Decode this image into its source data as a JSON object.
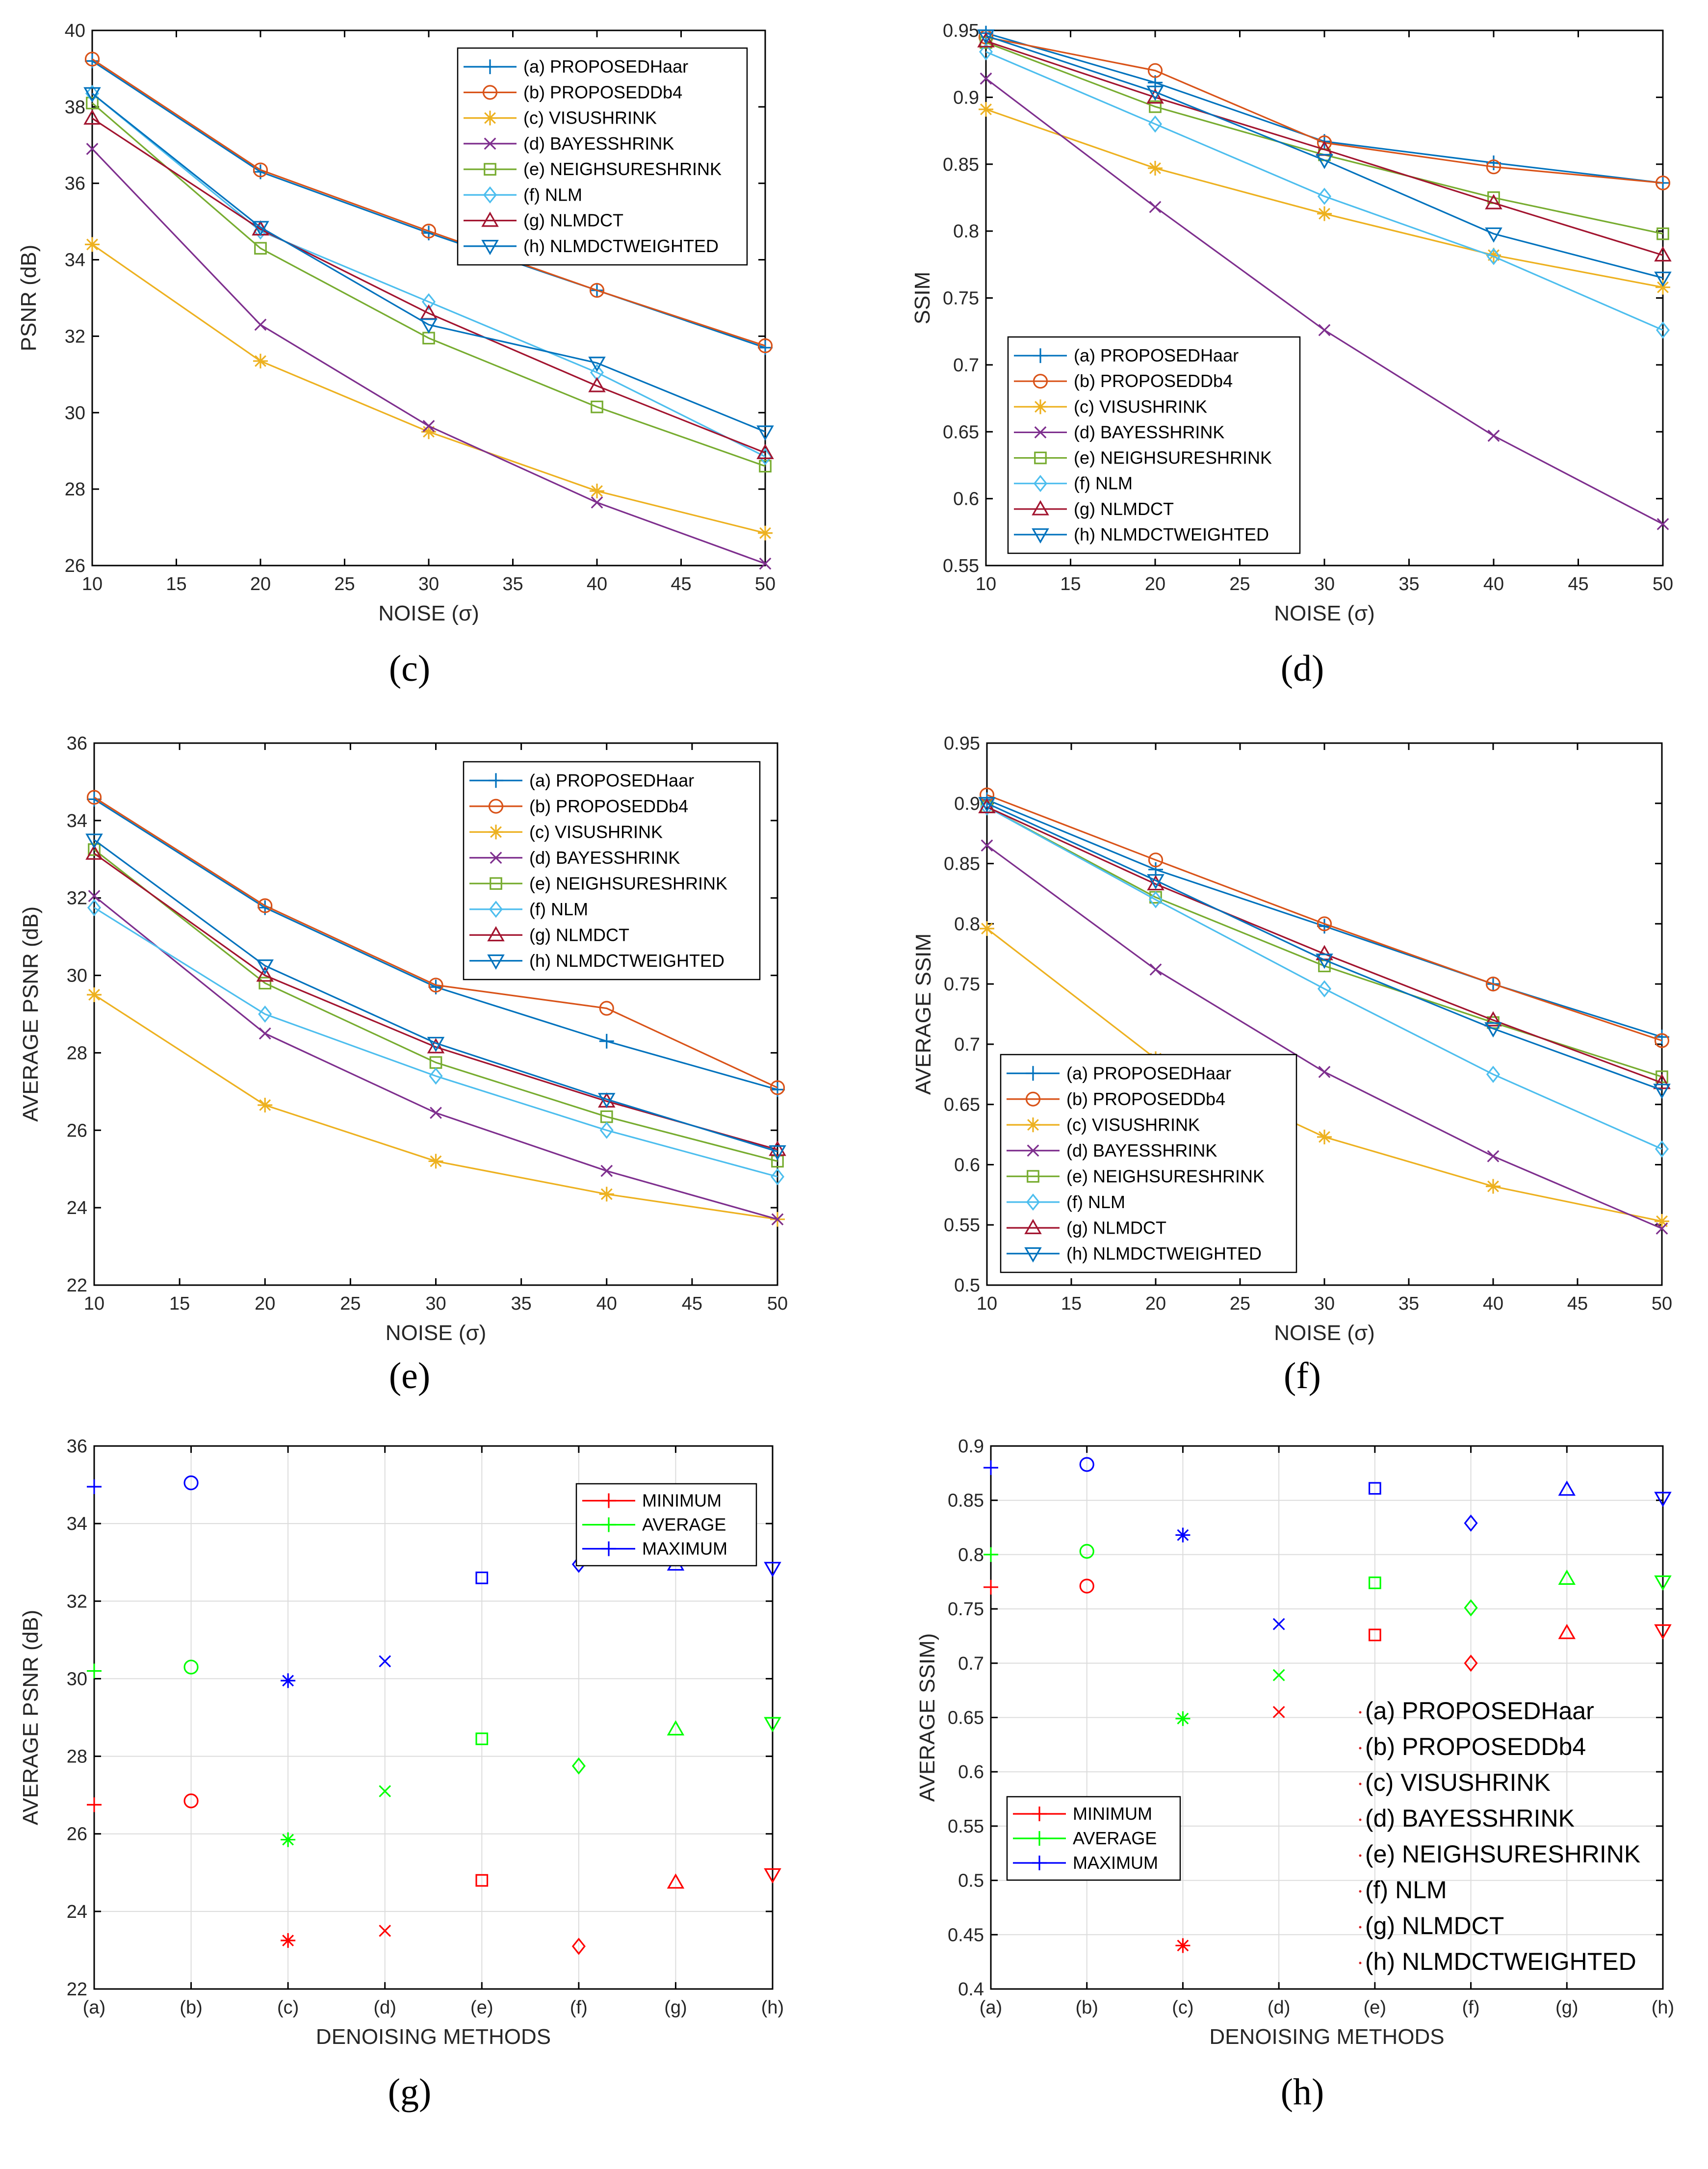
{
  "colors": {
    "a": "#0072BD",
    "b": "#D95319",
    "c": "#EDB120",
    "d": "#7E2F8E",
    "e": "#77AC30",
    "f": "#4DBEEE",
    "g": "#A2142F",
    "h": "#0072BD",
    "minimum": "#FF0000",
    "average": "#00FF00",
    "maximum": "#0000FF"
  },
  "methods": [
    "PROPOSEDHaar",
    "PROPOSEDDb4",
    "VISUSHRINK",
    "BAYESSHRINK",
    "NEIGHSURESHRINK",
    "NLM",
    "NLMDCT",
    "NLMDCTWEIGHTED"
  ],
  "method_legend_labels": [
    "(a) PROPOSEDHaar",
    "(b) PROPOSEDDb4",
    "(c) VISUSHRINK",
    "(d) BAYESSHRINK",
    "(e) NEIGHSURESHRINK",
    "(f) NLM",
    "(g) NLMDCT",
    "(h) NLMDCTWEIGHTED"
  ],
  "summary_legend_labels": [
    "MINIMUM",
    "AVERAGE",
    "MAXIMUM"
  ],
  "chart_data": [
    {
      "id": "c",
      "panel_label": "(c)",
      "type": "line",
      "xlabel": "NOISE (σ)",
      "ylabel": "PSNR (dB)",
      "x": [
        10,
        20,
        30,
        40,
        50
      ],
      "xticks": [
        "10",
        "15",
        "20",
        "25",
        "30",
        "35",
        "40",
        "45",
        "50"
      ],
      "xlim": [
        10,
        50
      ],
      "ylim": [
        26,
        40
      ],
      "yticks": [
        "26",
        "28",
        "30",
        "32",
        "34",
        "36",
        "38",
        "40"
      ],
      "legend": "top-right",
      "series": [
        {
          "key": "a",
          "name": "(a) PROPOSEDHaar",
          "marker": "plus",
          "values": [
            39.2,
            36.3,
            34.7,
            33.2,
            31.7
          ]
        },
        {
          "key": "b",
          "name": "(b) PROPOSEDDb4",
          "marker": "circle",
          "values": [
            39.25,
            36.35,
            34.75,
            33.2,
            31.75
          ]
        },
        {
          "key": "c",
          "name": "(c) VISUSHRINK",
          "marker": "asterisk",
          "values": [
            34.4,
            31.35,
            29.5,
            27.95,
            26.85
          ]
        },
        {
          "key": "d",
          "name": "(d) BAYESSHRINK",
          "marker": "x",
          "values": [
            36.9,
            32.3,
            29.65,
            27.65,
            26.05
          ]
        },
        {
          "key": "e",
          "name": "(e) NEIGHSURESHRINK",
          "marker": "square",
          "values": [
            38.1,
            34.3,
            31.95,
            30.15,
            28.6
          ]
        },
        {
          "key": "f",
          "name": "(f) NLM",
          "marker": "diamond",
          "values": [
            38.35,
            34.75,
            32.9,
            31.05,
            28.85
          ]
        },
        {
          "key": "g",
          "name": "(g) NLMDCT",
          "marker": "triangle-up",
          "values": [
            37.7,
            34.8,
            32.6,
            30.7,
            28.95
          ]
        },
        {
          "key": "h",
          "name": "(h) NLMDCTWEIGHTED",
          "marker": "triangle-down",
          "values": [
            38.35,
            34.85,
            32.3,
            31.3,
            29.5
          ]
        }
      ]
    },
    {
      "id": "d",
      "panel_label": "(d)",
      "type": "line",
      "xlabel": "NOISE (σ)",
      "ylabel": "SSIM",
      "x": [
        10,
        20,
        30,
        40,
        50
      ],
      "xticks": [
        "10",
        "15",
        "20",
        "25",
        "30",
        "35",
        "40",
        "45",
        "50"
      ],
      "xlim": [
        10,
        50
      ],
      "ylim": [
        0.55,
        0.95
      ],
      "yticks": [
        "0.55",
        "0.6",
        "0.65",
        "0.7",
        "0.75",
        "0.8",
        "0.85",
        "0.9",
        "0.95"
      ],
      "legend": "bottom-left",
      "series": [
        {
          "key": "a",
          "name": "(a) PROPOSEDHaar",
          "marker": "plus",
          "values": [
            0.948,
            0.911,
            0.867,
            0.851,
            0.836
          ]
        },
        {
          "key": "b",
          "name": "(b) PROPOSEDDb4",
          "marker": "circle",
          "values": [
            0.945,
            0.92,
            0.866,
            0.848,
            0.836
          ]
        },
        {
          "key": "c",
          "name": "(c) VISUSHRINK",
          "marker": "asterisk",
          "values": [
            0.891,
            0.847,
            0.813,
            0.782,
            0.758
          ]
        },
        {
          "key": "d",
          "name": "(d) BAYESSHRINK",
          "marker": "x",
          "values": [
            0.914,
            0.818,
            0.726,
            0.647,
            0.581
          ]
        },
        {
          "key": "e",
          "name": "(e) NEIGHSURESHRINK",
          "marker": "square",
          "values": [
            0.941,
            0.893,
            0.857,
            0.825,
            0.798
          ]
        },
        {
          "key": "f",
          "name": "(f) NLM",
          "marker": "diamond",
          "values": [
            0.934,
            0.88,
            0.826,
            0.781,
            0.726
          ]
        },
        {
          "key": "g",
          "name": "(g) NLMDCT",
          "marker": "triangle-up",
          "values": [
            0.942,
            0.9,
            0.861,
            0.821,
            0.782
          ]
        },
        {
          "key": "h",
          "name": "(h) NLMDCTWEIGHTED",
          "marker": "triangle-down",
          "values": [
            0.946,
            0.904,
            0.853,
            0.798,
            0.765
          ]
        }
      ]
    },
    {
      "id": "e",
      "panel_label": "(e)",
      "type": "line",
      "xlabel": "NOISE (σ)",
      "ylabel": "AVERAGE PSNR (dB)",
      "x": [
        10,
        20,
        30,
        40,
        50
      ],
      "xticks": [
        "10",
        "15",
        "20",
        "25",
        "30",
        "35",
        "40",
        "45",
        "50"
      ],
      "xlim": [
        10,
        50
      ],
      "ylim": [
        22,
        36
      ],
      "yticks": [
        "22",
        "24",
        "26",
        "28",
        "30",
        "32",
        "34",
        "36"
      ],
      "legend": "top-right",
      "series": [
        {
          "key": "a",
          "name": "(a) PROPOSEDHaar",
          "marker": "plus",
          "values": [
            34.55,
            31.75,
            29.7,
            28.3,
            27.05
          ]
        },
        {
          "key": "b",
          "name": "(b) PROPOSEDDb4",
          "marker": "circle",
          "values": [
            34.6,
            31.8,
            29.75,
            29.15,
            27.1
          ]
        },
        {
          "key": "c",
          "name": "(c) VISUSHRINK",
          "marker": "asterisk",
          "values": [
            29.5,
            26.65,
            25.2,
            24.35,
            23.7
          ]
        },
        {
          "key": "d",
          "name": "(d) BAYESSHRINK",
          "marker": "x",
          "values": [
            32.05,
            28.5,
            26.45,
            24.95,
            23.7
          ]
        },
        {
          "key": "e",
          "name": "(e) NEIGHSURESHRINK",
          "marker": "square",
          "values": [
            33.25,
            29.8,
            27.75,
            26.35,
            25.2
          ]
        },
        {
          "key": "f",
          "name": "(f) NLM",
          "marker": "diamond",
          "values": [
            31.75,
            29.0,
            27.4,
            26.0,
            24.8
          ]
        },
        {
          "key": "g",
          "name": "(g) NLMDCT",
          "marker": "triangle-up",
          "values": [
            33.15,
            30.0,
            28.15,
            26.75,
            25.5
          ]
        },
        {
          "key": "h",
          "name": "(h) NLMDCTWEIGHTED",
          "marker": "triangle-down",
          "values": [
            33.5,
            30.25,
            28.25,
            26.8,
            25.45
          ]
        }
      ]
    },
    {
      "id": "f",
      "panel_label": "(f)",
      "type": "line",
      "xlabel": "NOISE (σ)",
      "ylabel": "AVERAGE SSIM",
      "x": [
        10,
        20,
        30,
        40,
        50
      ],
      "xticks": [
        "10",
        "15",
        "20",
        "25",
        "30",
        "35",
        "40",
        "45",
        "50"
      ],
      "xlim": [
        10,
        50
      ],
      "ylim": [
        0.5,
        0.95
      ],
      "yticks": [
        "0.5",
        "0.55",
        "0.6",
        "0.65",
        "0.7",
        "0.75",
        "0.8",
        "0.85",
        "0.9",
        "0.95"
      ],
      "legend": "bottom-left",
      "series": [
        {
          "key": "a",
          "name": "(a) PROPOSEDHaar",
          "marker": "plus",
          "values": [
            0.903,
            0.845,
            0.798,
            0.75,
            0.706
          ]
        },
        {
          "key": "b",
          "name": "(b) PROPOSEDDb4",
          "marker": "circle",
          "values": [
            0.907,
            0.853,
            0.8,
            0.75,
            0.703
          ]
        },
        {
          "key": "c",
          "name": "(c) VISUSHRINK",
          "marker": "asterisk",
          "values": [
            0.796,
            0.688,
            0.623,
            0.582,
            0.553
          ]
        },
        {
          "key": "d",
          "name": "(d) BAYESSHRINK",
          "marker": "x",
          "values": [
            0.865,
            0.762,
            0.677,
            0.607,
            0.547
          ]
        },
        {
          "key": "e",
          "name": "(e) NEIGHSURESHRINK",
          "marker": "square",
          "values": [
            0.897,
            0.822,
            0.765,
            0.718,
            0.673
          ]
        },
        {
          "key": "f",
          "name": "(f) NLM",
          "marker": "diamond",
          "values": [
            0.897,
            0.82,
            0.746,
            0.675,
            0.613
          ]
        },
        {
          "key": "g",
          "name": "(g) NLMDCT",
          "marker": "triangle-up",
          "values": [
            0.897,
            0.833,
            0.775,
            0.72,
            0.668
          ]
        },
        {
          "key": "h",
          "name": "(h) NLMDCTWEIGHTED",
          "marker": "triangle-down",
          "values": [
            0.9,
            0.836,
            0.77,
            0.713,
            0.662
          ]
        }
      ]
    },
    {
      "id": "g",
      "panel_label": "(g)",
      "type": "scatter",
      "xlabel": "DENOISING METHODS",
      "ylabel": "AVERAGE PSNR (dB)",
      "categories": [
        "(a)",
        "(b)",
        "(c)",
        "(d)",
        "(e)",
        "(f)",
        "(g)",
        "(h)"
      ],
      "markers": [
        "plus",
        "circle",
        "asterisk",
        "x",
        "square",
        "diamond",
        "triangle-up",
        "triangle-down"
      ],
      "ylim": [
        22,
        36
      ],
      "yticks": [
        "22",
        "24",
        "26",
        "28",
        "30",
        "32",
        "34",
        "36"
      ],
      "legend": "top-right",
      "series": [
        {
          "key": "minimum",
          "name": "MINIMUM",
          "values": [
            26.75,
            26.85,
            23.25,
            23.5,
            24.8,
            23.1,
            24.75,
            24.95
          ]
        },
        {
          "key": "average",
          "name": "AVERAGE",
          "values": [
            30.2,
            30.3,
            25.85,
            27.1,
            28.45,
            27.75,
            28.7,
            28.85
          ]
        },
        {
          "key": "maximum",
          "name": "MAXIMUM",
          "values": [
            34.95,
            35.05,
            29.95,
            30.45,
            32.6,
            32.95,
            32.95,
            32.85
          ]
        }
      ]
    },
    {
      "id": "h",
      "panel_label": "(h)",
      "type": "scatter",
      "xlabel": "DENOISING METHODS",
      "ylabel": "AVERAGE SSIM)",
      "categories": [
        "(a)",
        "(b)",
        "(c)",
        "(d)",
        "(e)",
        "(f)",
        "(g)",
        "(h)"
      ],
      "markers": [
        "plus",
        "circle",
        "asterisk",
        "x",
        "square",
        "diamond",
        "triangle-up",
        "triangle-down"
      ],
      "ylim": [
        0.4,
        0.9
      ],
      "yticks": [
        "0.4",
        "0.45",
        "0.5",
        "0.55",
        "0.6",
        "0.65",
        "0.7",
        "0.75",
        "0.8",
        "0.85",
        "0.9"
      ],
      "legend": "bottom-left",
      "series": [
        {
          "key": "minimum",
          "name": "MINIMUM",
          "values": [
            0.77,
            0.771,
            0.44,
            0.655,
            0.726,
            0.7,
            0.728,
            0.73
          ]
        },
        {
          "key": "average",
          "name": "AVERAGE",
          "values": [
            0.8,
            0.803,
            0.649,
            0.689,
            0.774,
            0.751,
            0.778,
            0.775
          ]
        },
        {
          "key": "maximum",
          "name": "MAXIMUM",
          "values": [
            0.88,
            0.883,
            0.818,
            0.736,
            0.861,
            0.829,
            0.86,
            0.852
          ]
        }
      ],
      "method_key": [
        "(a) PROPOSEDHaar",
        "(b) PROPOSEDDb4",
        "(c) VISUSHRINK",
        "(d) BAYESSHRINK",
        "(e) NEIGHSURESHRINK",
        "(f) NLM",
        "(g) NLMDCT",
        "(h) NLMDCTWEIGHTED"
      ]
    }
  ]
}
